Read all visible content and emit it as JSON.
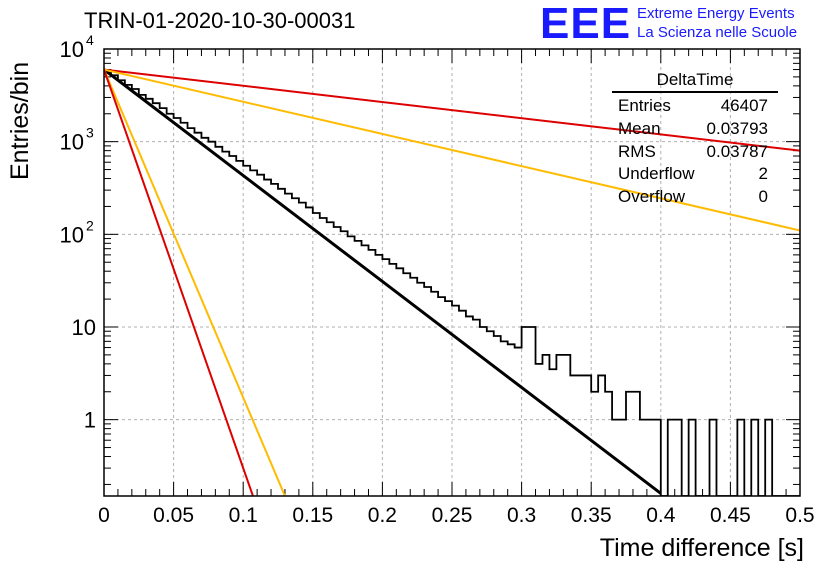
{
  "chart_data": {
    "type": "line",
    "title": "TRIN-01-2020-10-30-00031",
    "xlabel": "Time difference [s]",
    "ylabel": "Entries/bin",
    "xlim": [
      0,
      0.5
    ],
    "ylim": [
      0.15,
      10000
    ],
    "yscale": "log",
    "grid": true,
    "xticks": [
      "0",
      "0.05",
      "0.1",
      "0.15",
      "0.2",
      "0.25",
      "0.3",
      "0.35",
      "0.4",
      "0.45",
      "0.5"
    ],
    "yticks": [
      {
        "value": 1,
        "label": "1"
      },
      {
        "value": 10,
        "label": "10"
      },
      {
        "value": 100,
        "label": "10",
        "exp": "2"
      },
      {
        "value": 1000,
        "label": "10",
        "exp": "3"
      },
      {
        "value": 10000,
        "label": "10",
        "exp": "4"
      }
    ],
    "histogram": {
      "bin_width": 0.005,
      "counts": [
        5900,
        5200,
        4600,
        4100,
        3700,
        3200,
        2900,
        2600,
        2300,
        2000,
        1800,
        1600,
        1400,
        1250,
        1100,
        1000,
        880,
        780,
        700,
        620,
        550,
        490,
        440,
        390,
        350,
        310,
        275,
        245,
        220,
        195,
        170,
        150,
        135,
        120,
        108,
        95,
        85,
        76,
        68,
        60,
        54,
        48,
        43,
        38,
        34,
        30,
        27,
        24,
        21,
        19,
        17,
        15,
        13,
        12,
        10,
        9,
        8,
        7,
        6.5,
        6,
        10,
        10,
        4,
        5,
        3.5,
        5,
        5,
        3,
        3,
        3,
        2,
        3,
        2,
        1,
        1,
        2,
        2,
        1,
        1,
        1,
        0,
        1,
        1,
        0,
        1,
        0,
        0,
        1,
        0,
        0,
        0,
        1,
        0,
        1,
        0,
        1,
        0,
        0,
        0,
        0
      ]
    },
    "series": [
      {
        "color": "#000000",
        "y0": 6000,
        "y_at_0.4": 0.16
      },
      {
        "color": "#dd0000",
        "y0": 6000,
        "y_at_0.5": 800
      },
      {
        "color": "#ffbb00",
        "y0": 6000,
        "y_at_0.5": 110
      },
      {
        "color": "#ffbb00",
        "y0": 6000,
        "y_at_0.13": 0.15
      },
      {
        "color": "#dd0000",
        "y0": 6000,
        "y_at_0.107": 0.15
      }
    ]
  },
  "header": {
    "title": "TRIN-01-2020-10-30-00031",
    "logo": "EEE",
    "logo_line1": "Extreme Energy Events",
    "logo_line2": "La Scienza nelle Scuole"
  },
  "stats": {
    "name": "DeltaTime",
    "rows": [
      {
        "label": "Entries",
        "value": "46407"
      },
      {
        "label": "Mean",
        "value": "0.03793"
      },
      {
        "label": "RMS",
        "value": "0.03787"
      },
      {
        "label": "Underflow",
        "value": "2"
      },
      {
        "label": "Overflow",
        "value": "0"
      }
    ]
  }
}
